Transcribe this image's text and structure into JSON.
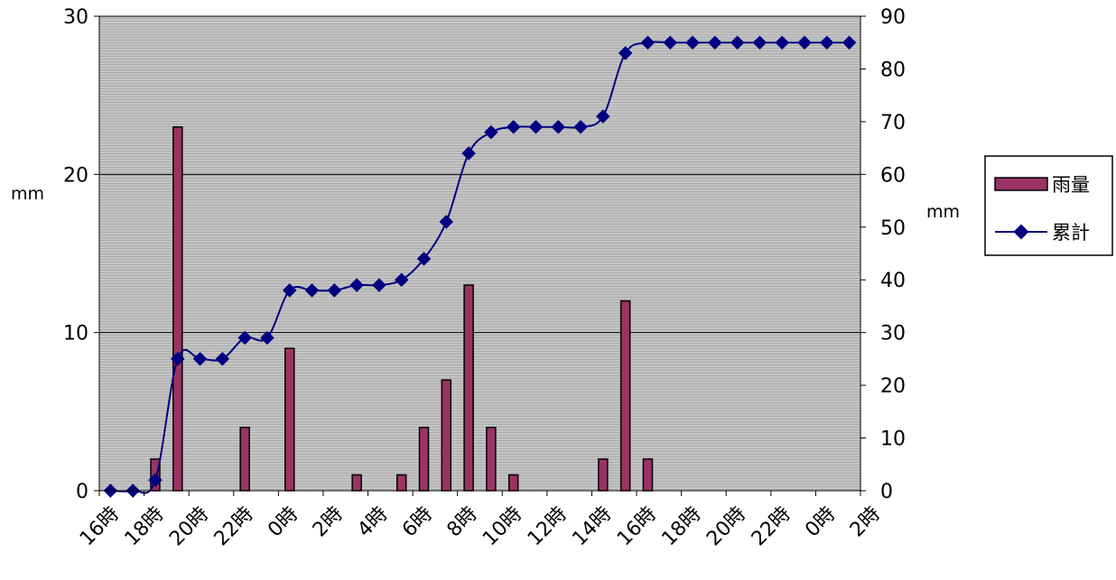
{
  "chart_data": {
    "type": "bar+line",
    "x_ticks": [
      "16時",
      "18時",
      "20時",
      "22時",
      "0時",
      "2時",
      "4時",
      "6時",
      "8時",
      "10時",
      "12時",
      "14時",
      "16時",
      "18時",
      "20時",
      "22時",
      "0時",
      "2時"
    ],
    "series": [
      {
        "name": "雨量",
        "type": "bar",
        "axis": "left",
        "color": "#993366",
        "values": [
          0,
          0,
          2,
          23,
          0,
          0,
          4,
          0,
          9,
          0,
          0,
          1,
          0,
          1,
          4,
          7,
          13,
          4,
          1,
          0,
          0,
          0,
          2,
          12,
          2,
          0,
          0,
          0,
          0,
          0,
          0,
          0,
          0,
          0
        ]
      },
      {
        "name": "累計",
        "type": "line",
        "axis": "right",
        "color": "#000080",
        "values": [
          0,
          0,
          2,
          25,
          25,
          25,
          29,
          29,
          38,
          38,
          38,
          39,
          39,
          40,
          44,
          51,
          64,
          68,
          69,
          69,
          69,
          69,
          71,
          83,
          85,
          85,
          85,
          85,
          85,
          85,
          85,
          85,
          85,
          85
        ]
      }
    ],
    "y_left": {
      "label": "mm",
      "min": 0,
      "max": 30,
      "ticks": [
        0,
        10,
        20,
        30
      ]
    },
    "y_right": {
      "label": "mm",
      "min": 0,
      "max": 90,
      "ticks": [
        0,
        10,
        20,
        30,
        40,
        50,
        60,
        70,
        80,
        90
      ]
    },
    "plot_background": "#c0c0c0",
    "grid": true,
    "legend_position": "right"
  }
}
